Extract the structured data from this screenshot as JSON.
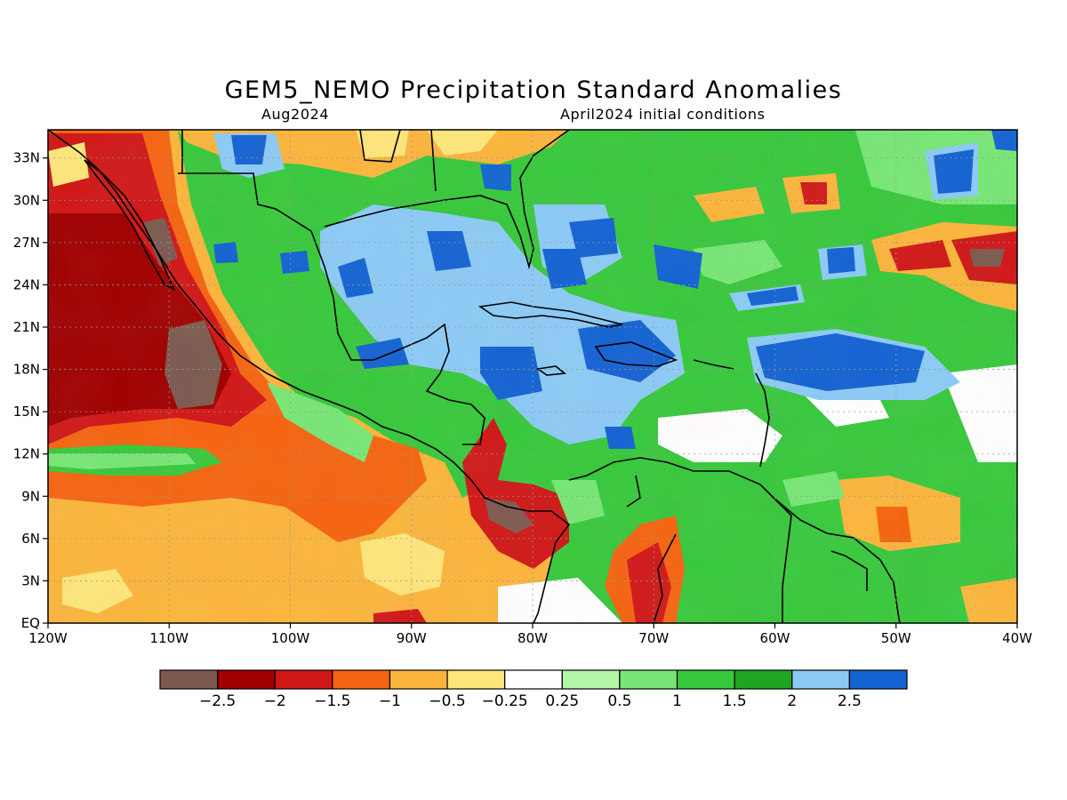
{
  "title": "GEM5_NEMO Precipitation Standard Anomalies",
  "valid_month": "Aug2024",
  "initial_conditions": "April2024 initial conditions",
  "map": {
    "lon_range": [
      -120,
      -40
    ],
    "lat_range": [
      0,
      35
    ],
    "lon_ticks": [
      {
        "v": -120,
        "label": "120W"
      },
      {
        "v": -110,
        "label": "110W"
      },
      {
        "v": -100,
        "label": "100W"
      },
      {
        "v": -90,
        "label": "90W"
      },
      {
        "v": -80,
        "label": "80W"
      },
      {
        "v": -70,
        "label": "70W"
      },
      {
        "v": -60,
        "label": "60W"
      },
      {
        "v": -50,
        "label": "50W"
      },
      {
        "v": -40,
        "label": "40W"
      }
    ],
    "lat_ticks": [
      {
        "v": 0,
        "label": "EQ"
      },
      {
        "v": 3,
        "label": "3N"
      },
      {
        "v": 6,
        "label": "6N"
      },
      {
        "v": 9,
        "label": "9N"
      },
      {
        "v": 12,
        "label": "12N"
      },
      {
        "v": 15,
        "label": "15N"
      },
      {
        "v": 18,
        "label": "18N"
      },
      {
        "v": 21,
        "label": "21N"
      },
      {
        "v": 24,
        "label": "24N"
      },
      {
        "v": 27,
        "label": "27N"
      },
      {
        "v": 30,
        "label": "30N"
      },
      {
        "v": 33,
        "label": "33N"
      }
    ]
  },
  "colorbar": {
    "colors": [
      "#7d5a50",
      "#a00000",
      "#d01818",
      "#f56410",
      "#fbb53c",
      "#fee67a",
      "#ffffff",
      "#b4f5a8",
      "#78e676",
      "#38c83c",
      "#1ea523",
      "#8ccaf5",
      "#1463d2"
    ],
    "labels": [
      "-2.5",
      "-2",
      "-1.5",
      "-1",
      "-0.5",
      "-0.25",
      "0.25",
      "0.5",
      "1",
      "1.5",
      "2",
      "2.5"
    ]
  },
  "colors": {
    "ocean_dry": "#fbb53c",
    "land_wet": "#38c83c",
    "sea_wet": "#8ccaf5"
  }
}
